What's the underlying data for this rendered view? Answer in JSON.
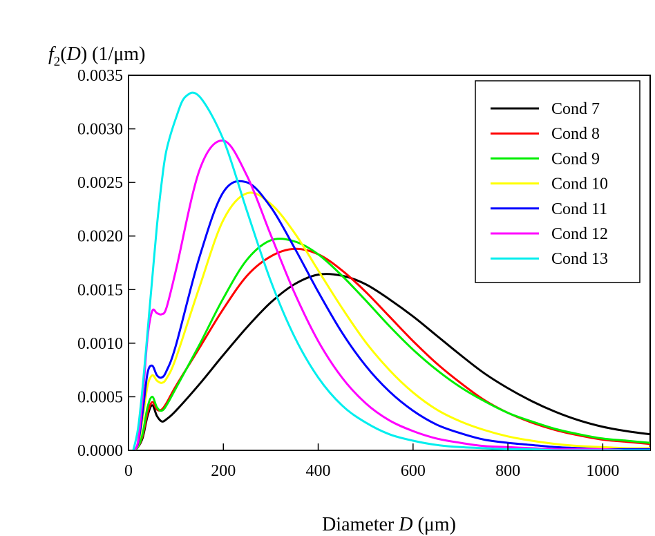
{
  "chart_data": {
    "type": "line",
    "title": "",
    "ylabel_parts": {
      "f": "f",
      "sub": "2",
      "arg": "(D)",
      "unit": " (1/μm)"
    },
    "xlabel_parts": {
      "pre": "Diameter ",
      "var": "D",
      "unit": " (μm)"
    },
    "xlim": [
      0,
      1100
    ],
    "ylim": [
      0,
      0.0035
    ],
    "xticks": [
      0,
      200,
      400,
      600,
      800,
      1000
    ],
    "xtick_labels": [
      "0",
      "200",
      "400",
      "600",
      "800",
      "1000"
    ],
    "yticks": [
      0,
      0.0005,
      0.001,
      0.0015,
      0.002,
      0.0025,
      0.003,
      0.0035
    ],
    "ytick_labels": [
      "0.0000",
      "0.0005",
      "0.0010",
      "0.0015",
      "0.0020",
      "0.0025",
      "0.0030",
      "0.0035"
    ],
    "grid": false,
    "legend_position": "top-right",
    "series": [
      {
        "name": "Cond 7",
        "color": "#000000",
        "x": [
          10,
          20,
          30,
          40,
          50,
          60,
          70,
          80,
          100,
          150,
          200,
          250,
          300,
          350,
          400,
          450,
          500,
          550,
          600,
          650,
          700,
          750,
          800,
          850,
          900,
          950,
          1000,
          1050,
          1100
        ],
        "y": [
          0,
          3e-05,
          0.00012,
          0.00032,
          0.00042,
          0.00032,
          0.00027,
          0.00029,
          0.00037,
          0.00062,
          0.00089,
          0.00115,
          0.00138,
          0.00155,
          0.00164,
          0.00163,
          0.00155,
          0.00141,
          0.00125,
          0.00107,
          0.00089,
          0.00072,
          0.00058,
          0.00046,
          0.00036,
          0.00028,
          0.00022,
          0.00018,
          0.00015
        ]
      },
      {
        "name": "Cond 8",
        "color": "#ff0000",
        "x": [
          10,
          20,
          30,
          40,
          50,
          60,
          70,
          80,
          100,
          150,
          200,
          250,
          300,
          350,
          400,
          450,
          500,
          550,
          600,
          650,
          700,
          750,
          800,
          850,
          900,
          950,
          1000,
          1050,
          1100
        ],
        "y": [
          0,
          3e-05,
          0.00014,
          0.00035,
          0.00045,
          0.00038,
          0.00038,
          0.00044,
          0.0006,
          0.00096,
          0.00132,
          0.00163,
          0.00181,
          0.00188,
          0.00183,
          0.00168,
          0.00148,
          0.00125,
          0.00102,
          0.00081,
          0.00063,
          0.00047,
          0.00035,
          0.00026,
          0.00019,
          0.00014,
          0.0001,
          8e-05,
          6e-05
        ]
      },
      {
        "name": "Cond 9",
        "color": "#00ee00",
        "x": [
          10,
          20,
          30,
          40,
          50,
          60,
          70,
          80,
          100,
          150,
          200,
          250,
          300,
          350,
          400,
          450,
          500,
          550,
          600,
          650,
          700,
          750,
          800,
          850,
          900,
          950,
          1000,
          1050,
          1100
        ],
        "y": [
          0,
          3e-05,
          0.00016,
          0.0004,
          0.0005,
          0.0004,
          0.00037,
          0.00042,
          0.00058,
          0.00099,
          0.00142,
          0.00178,
          0.00196,
          0.00195,
          0.00183,
          0.00163,
          0.0014,
          0.00116,
          0.00094,
          0.00075,
          0.00059,
          0.00046,
          0.00035,
          0.00027,
          0.0002,
          0.00015,
          0.00011,
          9e-05,
          7e-05
        ]
      },
      {
        "name": "Cond 10",
        "color": "#ffff00",
        "x": [
          10,
          20,
          30,
          40,
          50,
          60,
          70,
          80,
          100,
          150,
          200,
          250,
          300,
          350,
          400,
          450,
          500,
          550,
          600,
          650,
          700,
          750,
          800,
          850,
          900,
          950,
          1000,
          1050,
          1100
        ],
        "y": [
          0,
          5e-05,
          0.0003,
          0.0006,
          0.0007,
          0.00065,
          0.00063,
          0.00067,
          0.00086,
          0.00153,
          0.00215,
          0.0024,
          0.0023,
          0.00203,
          0.00168,
          0.00133,
          0.00101,
          0.00075,
          0.00054,
          0.00038,
          0.00027,
          0.00019,
          0.00013,
          9e-05,
          6e-05,
          4e-05,
          3e-05,
          2e-05,
          2e-05
        ]
      },
      {
        "name": "Cond 11",
        "color": "#0000ff",
        "x": [
          10,
          20,
          30,
          40,
          50,
          60,
          70,
          80,
          100,
          150,
          200,
          250,
          300,
          350,
          400,
          450,
          500,
          550,
          600,
          650,
          700,
          750,
          800,
          850,
          900,
          950,
          1000,
          1050,
          1100
        ],
        "y": [
          0,
          6e-05,
          0.00036,
          0.00072,
          0.00079,
          0.0007,
          0.00068,
          0.00074,
          0.00098,
          0.00181,
          0.00241,
          0.0025,
          0.00227,
          0.00189,
          0.00148,
          0.0011,
          0.00079,
          0.00055,
          0.00037,
          0.00024,
          0.00016,
          0.0001,
          7e-05,
          5e-05,
          3e-05,
          2e-05,
          1e-05,
          1e-05,
          1e-05
        ]
      },
      {
        "name": "Cond 12",
        "color": "#ff00ff",
        "x": [
          10,
          20,
          30,
          40,
          50,
          60,
          70,
          80,
          100,
          150,
          200,
          250,
          300,
          350,
          400,
          450,
          500,
          550,
          600,
          650,
          700,
          750,
          800,
          850,
          900,
          950,
          1000,
          1050,
          1100
        ],
        "y": [
          0,
          8e-05,
          0.0005,
          0.00105,
          0.0013,
          0.00128,
          0.00127,
          0.00133,
          0.00168,
          0.00262,
          0.00289,
          0.00256,
          0.00201,
          0.00147,
          0.00102,
          0.00068,
          0.00044,
          0.00028,
          0.00018,
          0.00011,
          7e-05,
          4e-05,
          3e-05,
          2e-05,
          1e-05,
          1e-05,
          1e-05,
          0,
          0
        ]
      },
      {
        "name": "Cond 13",
        "color": "#00eeee",
        "x": [
          10,
          20,
          30,
          40,
          50,
          60,
          70,
          80,
          100,
          120,
          150,
          200,
          250,
          300,
          350,
          400,
          450,
          500,
          550,
          600,
          650,
          700,
          750,
          800,
          850,
          900,
          950,
          1000,
          1050,
          1100
        ],
        "y": [
          0,
          0.0002,
          0.0006,
          0.0011,
          0.0016,
          0.0021,
          0.0025,
          0.0028,
          0.0031,
          0.0033,
          0.0033,
          0.0029,
          0.00223,
          0.00158,
          0.00106,
          0.00068,
          0.00042,
          0.00026,
          0.00015,
          9e-05,
          5e-05,
          3e-05,
          2e-05,
          1e-05,
          1e-05,
          0,
          0,
          0,
          0,
          0
        ]
      }
    ]
  }
}
